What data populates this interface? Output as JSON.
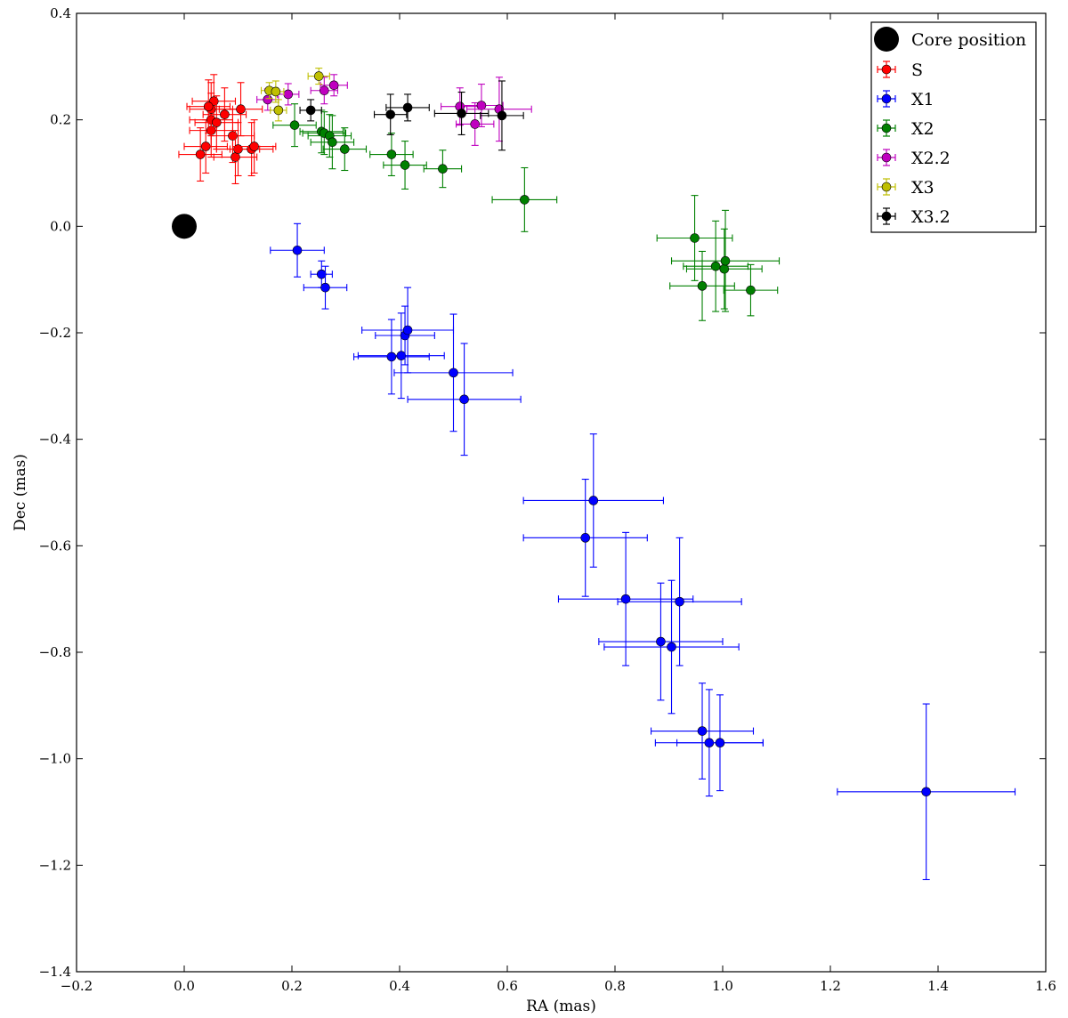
{
  "chart_data": {
    "type": "scatter",
    "title": "",
    "xlabel": "RA (mas)",
    "ylabel": "Dec (mas)",
    "xlim": [
      -0.2,
      1.6
    ],
    "ylim": [
      -1.4,
      0.4
    ],
    "xticks": [
      -0.2,
      0.0,
      0.2,
      0.4,
      0.6,
      0.8,
      1.0,
      1.2,
      1.4,
      1.6
    ],
    "yticks": [
      -1.4,
      -1.2,
      -1.0,
      -0.8,
      -0.6,
      -0.4,
      -0.2,
      0.0,
      0.2,
      0.4
    ],
    "xtick_labels": [
      "−0.2",
      "0.0",
      "0.2",
      "0.4",
      "0.6",
      "0.8",
      "1.0",
      "1.2",
      "1.4",
      "1.6"
    ],
    "ytick_labels": [
      "−1.4",
      "−1.2",
      "−1.0",
      "−0.8",
      "−0.6",
      "−0.4",
      "−0.2",
      "0.0",
      "0.2",
      "0.4"
    ],
    "grid": false,
    "legend_position": "top-right",
    "core": {
      "name": "Core position",
      "x": 0.0,
      "y": 0.0,
      "color": "#000000"
    },
    "series": [
      {
        "name": "S",
        "color": "#ff0000",
        "points": [
          [
            0.03,
            0.135,
            0.04,
            0.05
          ],
          [
            0.04,
            0.15,
            0.04,
            0.05
          ],
          [
            0.05,
            0.18,
            0.04,
            0.05
          ],
          [
            0.05,
            0.2,
            0.04,
            0.05
          ],
          [
            0.05,
            0.22,
            0.04,
            0.05
          ],
          [
            0.055,
            0.235,
            0.04,
            0.05
          ],
          [
            0.075,
            0.21,
            0.04,
            0.05
          ],
          [
            0.09,
            0.17,
            0.04,
            0.05
          ],
          [
            0.095,
            0.13,
            0.04,
            0.05
          ],
          [
            0.1,
            0.145,
            0.04,
            0.05
          ],
          [
            0.105,
            0.22,
            0.04,
            0.05
          ],
          [
            0.125,
            0.145,
            0.04,
            0.05
          ],
          [
            0.13,
            0.15,
            0.04,
            0.05
          ],
          [
            0.045,
            0.225,
            0.04,
            0.05
          ],
          [
            0.06,
            0.195,
            0.04,
            0.05
          ]
        ]
      },
      {
        "name": "X1",
        "color": "#0000ff",
        "points": [
          [
            0.21,
            -0.045,
            0.05,
            0.05
          ],
          [
            0.255,
            -0.09,
            0.02,
            0.025
          ],
          [
            0.262,
            -0.115,
            0.04,
            0.04
          ],
          [
            0.385,
            -0.245,
            0.07,
            0.07
          ],
          [
            0.403,
            -0.243,
            0.08,
            0.08
          ],
          [
            0.41,
            -0.205,
            0.055,
            0.055
          ],
          [
            0.415,
            -0.195,
            0.085,
            0.08
          ],
          [
            0.5,
            -0.275,
            0.11,
            0.11
          ],
          [
            0.52,
            -0.325,
            0.105,
            0.105
          ],
          [
            0.745,
            -0.585,
            0.115,
            0.11
          ],
          [
            0.76,
            -0.515,
            0.13,
            0.125
          ],
          [
            0.82,
            -0.7,
            0.125,
            0.125
          ],
          [
            0.885,
            -0.78,
            0.115,
            0.11
          ],
          [
            0.905,
            -0.79,
            0.125,
            0.125
          ],
          [
            0.92,
            -0.705,
            0.115,
            0.12
          ],
          [
            0.962,
            -0.948,
            0.095,
            0.09
          ],
          [
            0.975,
            -0.97,
            0.1,
            0.1
          ],
          [
            0.995,
            -0.97,
            0.08,
            0.09
          ],
          [
            1.378,
            -1.062,
            0.165,
            0.165
          ]
        ]
      },
      {
        "name": "X2",
        "color": "#008000",
        "points": [
          [
            0.205,
            0.19,
            0.04,
            0.04
          ],
          [
            0.255,
            0.178,
            0.04,
            0.04
          ],
          [
            0.26,
            0.175,
            0.04,
            0.04
          ],
          [
            0.27,
            0.17,
            0.04,
            0.04
          ],
          [
            0.275,
            0.158,
            0.04,
            0.05
          ],
          [
            0.298,
            0.145,
            0.04,
            0.04
          ],
          [
            0.385,
            0.135,
            0.04,
            0.04
          ],
          [
            0.41,
            0.115,
            0.04,
            0.045
          ],
          [
            0.48,
            0.108,
            0.035,
            0.035
          ],
          [
            0.632,
            0.05,
            0.06,
            0.06
          ],
          [
            0.948,
            -0.022,
            0.07,
            0.08
          ],
          [
            0.962,
            -0.112,
            0.06,
            0.065
          ],
          [
            0.987,
            -0.075,
            0.06,
            0.085
          ],
          [
            1.003,
            -0.08,
            0.07,
            0.075
          ],
          [
            1.005,
            -0.065,
            0.1,
            0.095
          ],
          [
            1.052,
            -0.12,
            0.05,
            0.048
          ]
        ]
      },
      {
        "name": "X2.2",
        "color": "#bf00bf",
        "points": [
          [
            0.155,
            0.238,
            0.02,
            0.02
          ],
          [
            0.193,
            0.248,
            0.02,
            0.02
          ],
          [
            0.26,
            0.255,
            0.025,
            0.025
          ],
          [
            0.278,
            0.265,
            0.025,
            0.02
          ],
          [
            0.512,
            0.225,
            0.035,
            0.035
          ],
          [
            0.54,
            0.192,
            0.035,
            0.04
          ],
          [
            0.552,
            0.227,
            0.04,
            0.04
          ],
          [
            0.585,
            0.22,
            0.06,
            0.06
          ]
        ]
      },
      {
        "name": "X3",
        "color": "#bfbf00",
        "points": [
          [
            0.158,
            0.255,
            0.015,
            0.015
          ],
          [
            0.17,
            0.253,
            0.015,
            0.02
          ],
          [
            0.175,
            0.218,
            0.015,
            0.02
          ],
          [
            0.25,
            0.282,
            0.02,
            0.015
          ]
        ]
      },
      {
        "name": "X3.2",
        "color": "#000000",
        "points": [
          [
            0.235,
            0.218,
            0.02,
            0.02
          ],
          [
            0.383,
            0.21,
            0.03,
            0.038
          ],
          [
            0.415,
            0.223,
            0.04,
            0.025
          ],
          [
            0.515,
            0.212,
            0.05,
            0.04
          ],
          [
            0.59,
            0.208,
            0.04,
            0.065
          ]
        ]
      }
    ]
  }
}
